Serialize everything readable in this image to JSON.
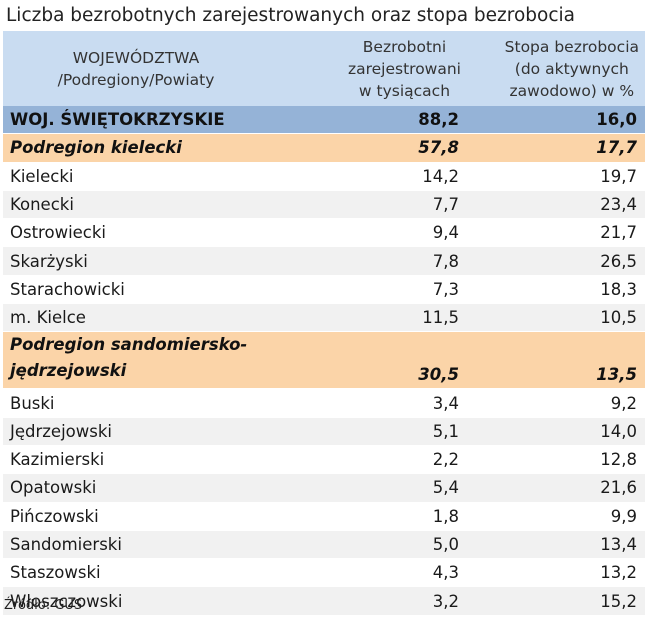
{
  "title": "Liczba bezrobotnych zarejestrowanych oraz stopa bezrobocia",
  "header": {
    "col1": [
      "WOJEWÓDZTWA",
      "/Podregiony/Powiaty"
    ],
    "col2": [
      "Bezrobotni",
      "zarejestrowani",
      "w tysiącach"
    ],
    "col3": [
      "Stopa bezrobocia",
      "(do aktywnych",
      "zawodowo) w %"
    ]
  },
  "voivodeship": {
    "name": "WOJ. ŚWIĘTOKRZYSKIE",
    "unemployed": "88,2",
    "rate": "16,0"
  },
  "subregion1": {
    "name": "Podregion kielecki",
    "unemployed": "57,8",
    "rate": "17,7"
  },
  "rows1": [
    {
      "name": "Kielecki",
      "unemployed": "14,2",
      "rate": "19,7"
    },
    {
      "name": "Konecki",
      "unemployed": "7,7",
      "rate": "23,4"
    },
    {
      "name": "Ostrowiecki",
      "unemployed": "9,4",
      "rate": "21,7"
    },
    {
      "name": "Skarżyski",
      "unemployed": "7,8",
      "rate": "26,5"
    },
    {
      "name": "Starachowicki",
      "unemployed": "7,3",
      "rate": "18,3"
    },
    {
      "name": "m. Kielce",
      "unemployed": "11,5",
      "rate": "10,5"
    }
  ],
  "subregion2": {
    "name_line1": "Podregion sandomiersko-",
    "name_line2": "jędrzejowski",
    "unemployed": "30,5",
    "rate": "13,5"
  },
  "rows2": [
    {
      "name": "Buski",
      "unemployed": "3,4",
      "rate": "9,2"
    },
    {
      "name": "Jędrzejowski",
      "unemployed": "5,1",
      "rate": "14,0"
    },
    {
      "name": "Kazimierski",
      "unemployed": "2,2",
      "rate": "12,8"
    },
    {
      "name": "Opatowski",
      "unemployed": "5,4",
      "rate": "21,6"
    },
    {
      "name": "Pińczowski",
      "unemployed": "1,8",
      "rate": "9,9"
    },
    {
      "name": "Sandomierski",
      "unemployed": "5,0",
      "rate": "13,4"
    },
    {
      "name": "Staszowski",
      "unemployed": "4,3",
      "rate": "13,2"
    },
    {
      "name": "Włoszczowski",
      "unemployed": "3,2",
      "rate": "15,2"
    }
  ],
  "source": "Źródło: GUS",
  "colors": {
    "header_bg": "#c9dcf1",
    "voivodeship_bg": "#95b3d7",
    "subregion_bg": "#fbd4a8",
    "stripe_bg": "#f1f1f1"
  }
}
